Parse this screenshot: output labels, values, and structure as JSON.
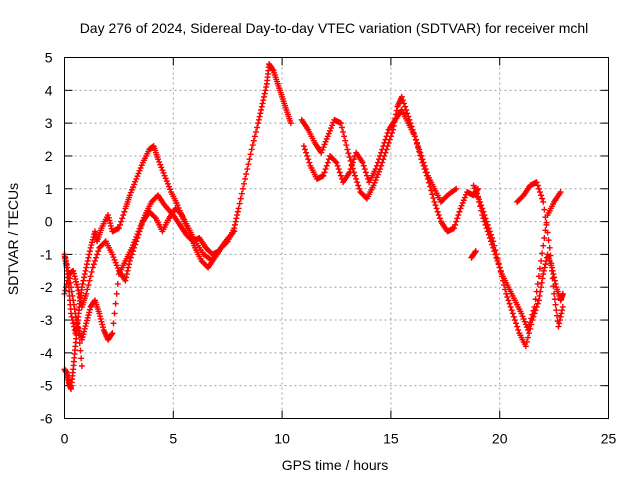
{
  "chart_data": {
    "type": "scatter",
    "title": "Day 276 of 2024, Sidereal Day-to-day VTEC variation (SDTVAR) for receiver mchl",
    "xlabel": "GPS time / hours",
    "ylabel": "SDTVAR / TECUs",
    "xlim": [
      0,
      25
    ],
    "ylim": [
      -6,
      5
    ],
    "xticks": [
      0,
      5,
      10,
      15,
      20,
      25
    ],
    "yticks": [
      -6,
      -5,
      -4,
      -3,
      -2,
      -1,
      0,
      1,
      2,
      3,
      4,
      5
    ],
    "grid": true,
    "marker": "+",
    "series": [
      {
        "name": "SDTVAR trace A",
        "color": "#ff0000",
        "x": [
          0.0,
          0.1,
          0.2,
          0.3,
          0.4,
          0.5,
          0.6,
          0.7,
          0.8,
          1.0,
          1.2,
          1.4,
          1.5,
          1.7,
          2.0,
          2.2,
          2.5,
          2.8,
          3.0,
          3.3,
          3.6,
          3.9,
          4.1,
          4.3,
          4.6,
          4.9,
          5.2,
          5.5,
          5.8,
          6.0,
          6.3,
          6.6,
          6.9,
          7.2,
          7.5,
          7.8,
          8.0,
          8.3,
          8.6,
          8.9,
          9.1,
          9.3,
          9.4,
          9.6,
          9.8,
          10.0,
          10.2,
          10.4
        ],
        "y": [
          -4.5,
          -4.6,
          -4.9,
          -5.1,
          -4.5,
          -3.8,
          -3.1,
          -2.5,
          -2.0,
          -1.4,
          -0.8,
          -0.3,
          -0.6,
          -0.2,
          0.2,
          -0.3,
          -0.2,
          0.4,
          0.8,
          1.3,
          1.8,
          2.2,
          2.3,
          1.9,
          1.4,
          0.9,
          0.5,
          0.0,
          -0.4,
          -0.8,
          -1.2,
          -1.4,
          -1.1,
          -0.8,
          -0.6,
          -0.2,
          0.4,
          1.3,
          2.2,
          3.0,
          3.6,
          4.2,
          4.8,
          4.6,
          4.2,
          3.8,
          3.4,
          3.0
        ]
      },
      {
        "name": "SDTVAR trace B",
        "color": "#ff0000",
        "x": [
          0.0,
          0.2,
          0.4,
          0.6,
          0.8,
          1.0,
          1.2,
          1.4,
          1.6,
          1.8,
          2.0,
          2.2,
          2.5,
          2.8,
          3.1,
          3.4,
          3.7,
          4.0,
          4.3,
          4.6,
          5.0,
          5.3,
          5.6,
          5.9,
          6.2,
          6.5,
          6.8,
          7.1,
          7.4,
          7.8
        ],
        "y": [
          -1.0,
          -1.6,
          -2.4,
          -3.2,
          -3.6,
          -3.1,
          -2.6,
          -2.4,
          -2.8,
          -3.3,
          -3.6,
          -3.4,
          -1.6,
          -1.2,
          -0.8,
          -0.3,
          0.2,
          0.6,
          0.8,
          0.5,
          0.2,
          -0.1,
          -0.4,
          -0.6,
          -0.5,
          -0.8,
          -1.0,
          -0.9,
          -0.6,
          -0.3
        ]
      },
      {
        "name": "SDTVAR trace C",
        "color": "#ff0000",
        "x": [
          0.0,
          0.2,
          0.4,
          0.6,
          0.8,
          1.0,
          1.3,
          1.6,
          1.9,
          2.2,
          2.5,
          2.8,
          3.0,
          3.3,
          3.6,
          3.9,
          4.2,
          4.5,
          4.8,
          5.1,
          5.4,
          5.7,
          6.0,
          6.4,
          6.8
        ],
        "y": [
          -2.2,
          -1.6,
          -1.5,
          -2.0,
          -2.6,
          -2.2,
          -1.4,
          -0.8,
          -0.6,
          -1.0,
          -1.5,
          -1.8,
          -1.2,
          -0.6,
          0.0,
          0.3,
          0.1,
          -0.3,
          0.1,
          0.4,
          0.2,
          -0.2,
          -0.6,
          -1.0,
          -1.2
        ]
      },
      {
        "name": "SDTVAR trace D",
        "color": "#ff0000",
        "x": [
          10.9,
          11.2,
          11.5,
          11.8,
          12.1,
          12.4,
          12.7,
          13.0,
          13.3,
          13.6,
          13.9,
          14.2,
          14.5,
          14.8,
          15.1,
          15.3,
          15.5,
          15.8,
          16.1,
          16.4,
          16.7,
          17.0,
          17.3,
          17.6,
          17.9,
          18.2,
          18.5,
          18.8,
          19.0
        ],
        "y": [
          3.1,
          2.8,
          2.4,
          2.1,
          2.6,
          3.1,
          3.0,
          2.2,
          1.5,
          0.9,
          0.7,
          1.1,
          1.6,
          2.2,
          2.8,
          3.5,
          3.8,
          3.2,
          2.6,
          1.9,
          1.3,
          0.6,
          0.0,
          -0.3,
          -0.2,
          0.4,
          0.9,
          0.8,
          1.0
        ]
      },
      {
        "name": "SDTVAR trace E",
        "color": "#ff0000",
        "x": [
          11.0,
          11.3,
          11.6,
          11.9,
          12.2,
          12.5,
          12.8,
          13.1,
          13.4,
          13.7,
          14.0,
          14.3,
          14.6,
          14.9,
          15.2,
          15.5,
          15.8,
          16.1,
          16.4,
          16.7,
          17.0,
          17.3,
          17.6,
          18.0
        ],
        "y": [
          2.3,
          1.7,
          1.3,
          1.4,
          2.0,
          1.8,
          1.2,
          1.5,
          2.1,
          1.8,
          1.2,
          1.6,
          2.2,
          2.8,
          3.1,
          3.4,
          3.0,
          2.6,
          2.0,
          1.4,
          1.0,
          0.6,
          0.8,
          1.0
        ]
      },
      {
        "name": "SDTVAR trace F",
        "color": "#ff0000",
        "x": [
          18.8,
          19.1,
          19.4,
          19.7,
          20.0,
          20.3,
          20.6,
          20.9,
          21.2,
          21.5,
          21.8,
          22.0,
          22.2,
          22.4,
          22.6,
          22.8,
          22.9
        ],
        "y": [
          1.1,
          0.6,
          0.0,
          -0.6,
          -1.4,
          -2.2,
          -2.8,
          -3.4,
          -3.8,
          -3.0,
          -2.4,
          -1.6,
          -1.0,
          -1.4,
          -2.0,
          -2.4,
          -2.2
        ]
      },
      {
        "name": "SDTVAR trace G",
        "color": "#ff0000",
        "x": [
          18.9,
          19.2,
          19.5,
          19.8,
          20.1,
          20.4,
          20.7,
          21.0,
          21.3,
          21.6,
          21.9,
          22.2,
          22.5,
          22.8
        ],
        "y": [
          1.0,
          0.2,
          -0.4,
          -1.0,
          -1.6,
          -2.0,
          -2.4,
          -2.8,
          -3.3,
          -2.6,
          -1.2,
          0.2,
          0.6,
          0.9
        ]
      },
      {
        "name": "SDTVAR trace H",
        "color": "#ff0000",
        "x": [
          20.8,
          21.1,
          21.4,
          21.7,
          22.0,
          22.3,
          22.5,
          22.7,
          22.9
        ],
        "y": [
          0.6,
          0.8,
          1.1,
          1.2,
          0.6,
          -0.8,
          -2.2,
          -3.2,
          -2.6
        ]
      },
      {
        "name": "SDTVAR trace I",
        "color": "#ff0000",
        "x": [
          0.0,
          0.1,
          0.2,
          0.3,
          0.5,
          0.6,
          0.8
        ],
        "y": [
          -1.0,
          -1.4,
          -2.0,
          -2.8,
          -3.4,
          -3.0,
          -4.4
        ]
      },
      {
        "name": "SDTVAR trace J",
        "color": "#ff0000",
        "x": [
          18.7,
          18.9
        ],
        "y": [
          -1.1,
          -0.9
        ]
      }
    ]
  }
}
